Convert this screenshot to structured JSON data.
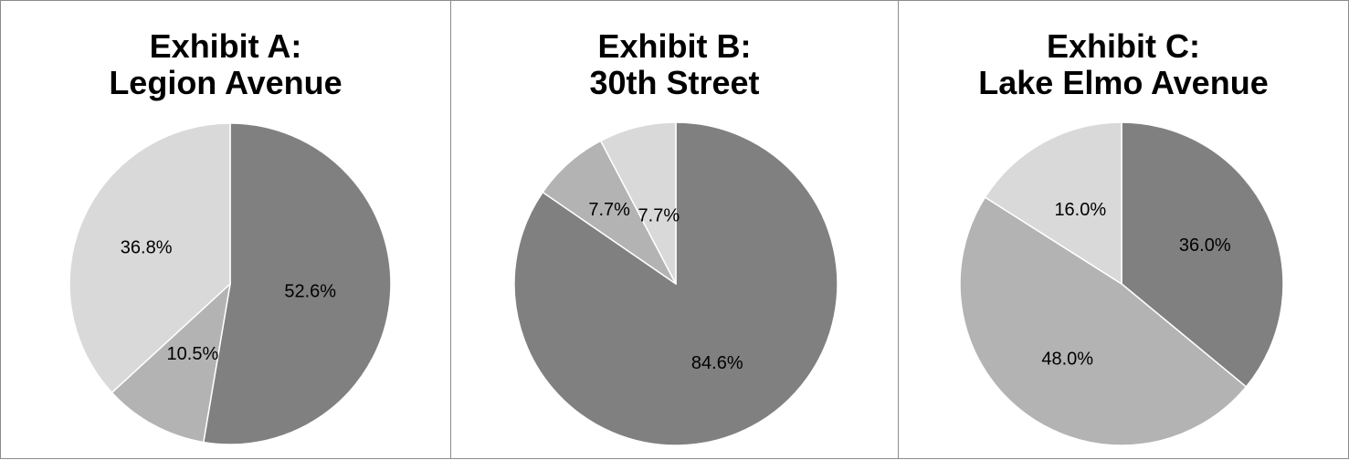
{
  "chart_data": [
    {
      "type": "pie",
      "title": "Exhibit A:",
      "subtitle": "Legion Avenue",
      "series": [
        {
          "value": 52.6,
          "label": "52.6%",
          "color": "#808080"
        },
        {
          "value": 10.5,
          "label": "10.5%",
          "color": "#b3b3b3"
        },
        {
          "value": 36.8,
          "label": "36.8%",
          "color": "#d9d9d9"
        }
      ]
    },
    {
      "type": "pie",
      "title": "Exhibit B:",
      "subtitle": "30th Street",
      "series": [
        {
          "value": 84.6,
          "label": "84.6%",
          "color": "#808080"
        },
        {
          "value": 7.7,
          "label": "7.7%",
          "color": "#b3b3b3"
        },
        {
          "value": 7.7,
          "label": "7.7%",
          "color": "#d9d9d9"
        }
      ]
    },
    {
      "type": "pie",
      "title": "Exhibit C:",
      "subtitle": "Lake Elmo Avenue",
      "series": [
        {
          "value": 36.0,
          "label": "36.0%",
          "color": "#808080"
        },
        {
          "value": 48.0,
          "label": "48.0%",
          "color": "#b3b3b3"
        },
        {
          "value": 16.0,
          "label": "16.0%",
          "color": "#d9d9d9"
        }
      ]
    }
  ]
}
